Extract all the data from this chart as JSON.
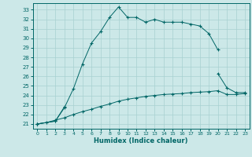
{
  "xlabel": "Humidex (Indice chaleur)",
  "bg_color": "#cce8e8",
  "grid_color": "#a8d0d0",
  "line_color": "#006666",
  "xlim_min": -0.5,
  "xlim_max": 23.5,
  "ylim_min": 20.5,
  "ylim_max": 33.7,
  "yticks": [
    21,
    22,
    23,
    24,
    25,
    26,
    27,
    28,
    29,
    30,
    31,
    32,
    33
  ],
  "xticks": [
    0,
    1,
    2,
    3,
    4,
    5,
    6,
    7,
    8,
    9,
    10,
    11,
    12,
    13,
    14,
    15,
    16,
    17,
    18,
    19,
    20,
    21,
    22,
    23
  ],
  "line1_x": [
    0,
    2,
    3,
    4,
    5,
    6,
    7,
    8,
    9,
    10,
    11,
    12,
    13,
    14,
    15,
    16,
    17,
    18,
    19,
    20
  ],
  "line1_y": [
    21.0,
    21.3,
    22.7,
    24.7,
    27.3,
    29.5,
    30.7,
    32.2,
    33.3,
    32.2,
    32.2,
    31.7,
    32.0,
    31.7,
    31.7,
    31.7,
    31.5,
    31.3,
    30.5,
    28.8
  ],
  "line2_x": [
    0,
    2,
    3,
    20,
    21,
    22,
    23
  ],
  "line2_y": [
    21.0,
    21.3,
    22.8,
    26.3,
    24.8,
    24.3,
    24.3
  ],
  "line2_break": 3,
  "line3_x": [
    0,
    1,
    2,
    3,
    4,
    5,
    6,
    7,
    8,
    9,
    10,
    11,
    12,
    13,
    14,
    15,
    16,
    17,
    18,
    19,
    20,
    21,
    22,
    23
  ],
  "line3_y": [
    21.0,
    21.15,
    21.4,
    21.65,
    22.0,
    22.3,
    22.55,
    22.85,
    23.1,
    23.4,
    23.6,
    23.75,
    23.9,
    24.0,
    24.1,
    24.15,
    24.2,
    24.3,
    24.35,
    24.4,
    24.5,
    24.1,
    24.1,
    24.2
  ]
}
